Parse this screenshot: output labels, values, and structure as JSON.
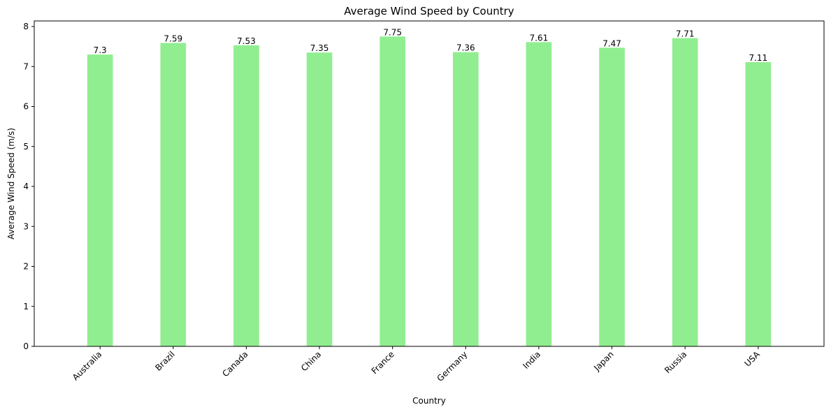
{
  "chart_data": {
    "type": "bar",
    "title": "Average Wind Speed by Country",
    "xlabel": "Country",
    "ylabel": "Average Wind Speed (m/s)",
    "categories": [
      "Australia",
      "Brazil",
      "Canada",
      "China",
      "France",
      "Germany",
      "India",
      "Japan",
      "Russia",
      "USA"
    ],
    "values": [
      7.3,
      7.59,
      7.53,
      7.35,
      7.75,
      7.36,
      7.61,
      7.47,
      7.71,
      7.11
    ],
    "value_labels": [
      "7.3",
      "7.59",
      "7.53",
      "7.35",
      "7.75",
      "7.36",
      "7.61",
      "7.47",
      "7.71",
      "7.11"
    ],
    "ylim": [
      0,
      8.14
    ],
    "yticks": [
      0,
      1,
      2,
      3,
      4,
      5,
      6,
      7,
      8
    ],
    "bar_color": "#90EE90",
    "grid": false,
    "legend": "none",
    "x_tick_rotation": 45
  }
}
